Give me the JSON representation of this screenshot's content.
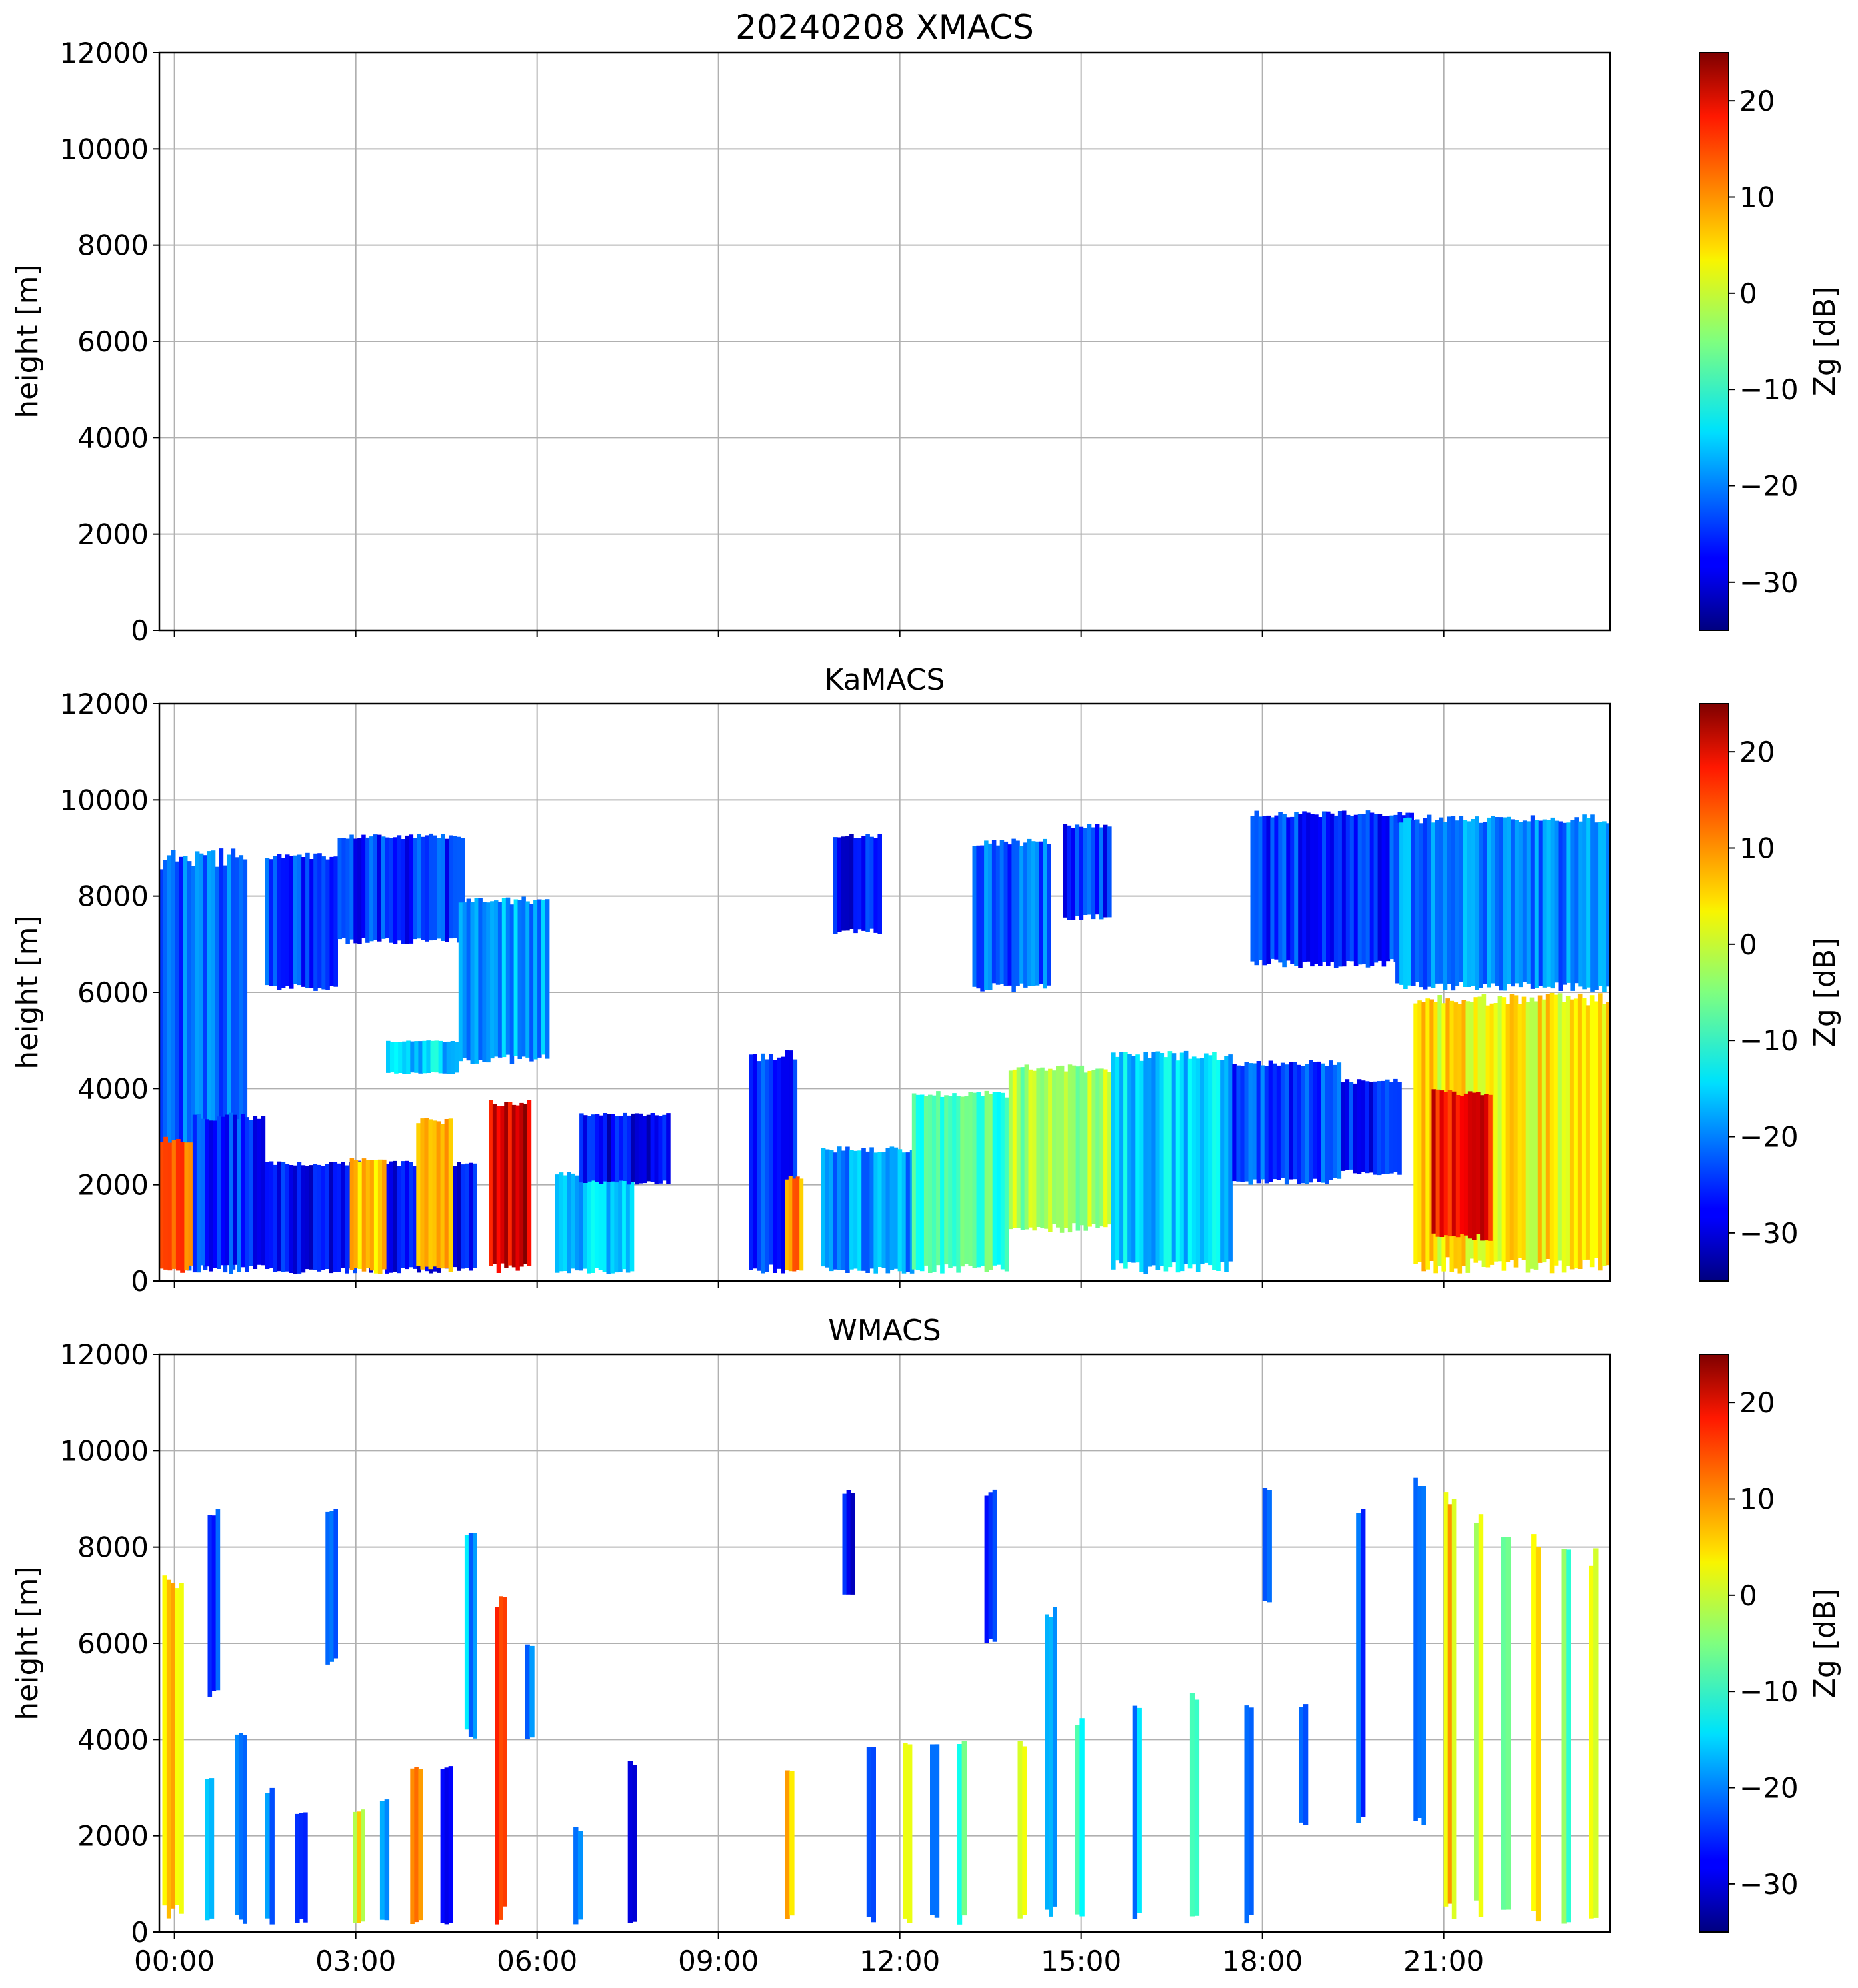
{
  "chart_data": [
    {
      "type": "heatmap",
      "title": "20240208 XMACS",
      "xlabel": "",
      "ylabel": "height [m]",
      "ylim": [
        0,
        12000
      ],
      "yticks": [
        "0",
        "2000",
        "4000",
        "6000",
        "8000",
        "10000",
        "12000"
      ],
      "xlim": [
        -0.25,
        23.75
      ],
      "xticks": [
        0,
        3,
        6,
        9,
        12,
        15,
        18,
        21
      ],
      "grid": true,
      "colorbar": {
        "label": "Zg [dB]",
        "range": [
          -35,
          25
        ],
        "ticks": [
          "20",
          "10",
          "0",
          "−10",
          "−20",
          "−30"
        ]
      },
      "echoes": []
    },
    {
      "type": "heatmap",
      "title": "KaMACS",
      "xlabel": "",
      "ylabel": "height [m]",
      "ylim": [
        0,
        12000
      ],
      "yticks": [
        "0",
        "2000",
        "4000",
        "6000",
        "8000",
        "10000",
        "12000"
      ],
      "xlim": [
        -0.25,
        23.75
      ],
      "xticks": [
        0,
        3,
        6,
        9,
        12,
        15,
        18,
        21
      ],
      "grid": true,
      "colorbar": {
        "label": "Zg [dB]",
        "range": [
          -35,
          25
        ],
        "ticks": [
          "20",
          "10",
          "0",
          "−10",
          "−20",
          "−30"
        ]
      },
      "echoes": [
        {
          "t0": -0.25,
          "t1": 1.2,
          "h0": 150,
          "h1": 9000,
          "zg": -22
        },
        {
          "t0": -0.25,
          "t1": 0.3,
          "h0": 150,
          "h1": 3000,
          "zg": 12
        },
        {
          "t0": 0.3,
          "t1": 1.5,
          "h0": 150,
          "h1": 3500,
          "zg": -25
        },
        {
          "t0": 1.5,
          "t1": 2.7,
          "h0": 6000,
          "h1": 8900,
          "zg": -25
        },
        {
          "t0": 2.7,
          "t1": 4.8,
          "h0": 7000,
          "h1": 9300,
          "zg": -25
        },
        {
          "t0": 1.5,
          "t1": 5.0,
          "h0": 150,
          "h1": 2500,
          "zg": -27
        },
        {
          "t0": 2.9,
          "t1": 3.5,
          "h0": 150,
          "h1": 2600,
          "zg": 5
        },
        {
          "t0": 4.0,
          "t1": 4.6,
          "h0": 150,
          "h1": 3400,
          "zg": 8
        },
        {
          "t0": 4.7,
          "t1": 6.2,
          "h0": 4500,
          "h1": 8000,
          "zg": -18
        },
        {
          "t0": 3.5,
          "t1": 4.7,
          "h0": 4300,
          "h1": 5000,
          "zg": -15
        },
        {
          "t0": 5.2,
          "t1": 5.9,
          "h0": 150,
          "h1": 3800,
          "zg": 20
        },
        {
          "t0": 6.3,
          "t1": 7.6,
          "h0": 150,
          "h1": 2300,
          "zg": -15
        },
        {
          "t0": 6.7,
          "t1": 8.2,
          "h0": 2000,
          "h1": 3500,
          "zg": -28
        },
        {
          "t0": 9.5,
          "t1": 10.3,
          "h0": 150,
          "h1": 4800,
          "zg": -25
        },
        {
          "t0": 10.1,
          "t1": 10.4,
          "h0": 150,
          "h1": 2200,
          "zg": 10
        },
        {
          "t0": 10.7,
          "t1": 12.3,
          "h0": 150,
          "h1": 2800,
          "zg": -18
        },
        {
          "t0": 10.9,
          "t1": 11.7,
          "h0": 7200,
          "h1": 9300,
          "zg": -27
        },
        {
          "t0": 12.2,
          "t1": 13.8,
          "h0": 150,
          "h1": 4000,
          "zg": -8
        },
        {
          "t0": 13.2,
          "t1": 14.5,
          "h0": 6000,
          "h1": 9200,
          "zg": -22
        },
        {
          "t0": 14.7,
          "t1": 15.5,
          "h0": 7500,
          "h1": 9500,
          "zg": -25
        },
        {
          "t0": 13.8,
          "t1": 15.5,
          "h0": 1000,
          "h1": 4500,
          "zg": -3
        },
        {
          "t0": 15.5,
          "t1": 17.5,
          "h0": 150,
          "h1": 4800,
          "zg": -15
        },
        {
          "t0": 17.5,
          "t1": 19.3,
          "h0": 2000,
          "h1": 4600,
          "zg": -24
        },
        {
          "t0": 17.8,
          "t1": 20.5,
          "h0": 6500,
          "h1": 9800,
          "zg": -25
        },
        {
          "t0": 19.3,
          "t1": 20.3,
          "h0": 2200,
          "h1": 4200,
          "zg": -26
        },
        {
          "t0": 20.2,
          "t1": 23.75,
          "h0": 6000,
          "h1": 9700,
          "zg": -20
        },
        {
          "t0": 20.5,
          "t1": 23.75,
          "h0": 150,
          "h1": 6000,
          "zg": 3
        },
        {
          "t0": 20.8,
          "t1": 21.8,
          "h0": 800,
          "h1": 4000,
          "zg": 18
        }
      ]
    },
    {
      "type": "heatmap",
      "title": "WMACS",
      "xlabel": "",
      "ylabel": "height [m]",
      "ylim": [
        0,
        12000
      ],
      "yticks": [
        "0",
        "2000",
        "4000",
        "6000",
        "8000",
        "10000",
        "12000"
      ],
      "xlim": [
        -0.25,
        23.75
      ],
      "xticks": [
        "00:00",
        "03:00",
        "06:00",
        "09:00",
        "12:00",
        "15:00",
        "18:00",
        "21:00"
      ],
      "grid": true,
      "colorbar": {
        "label": "Zg [dB]",
        "range": [
          -35,
          25
        ],
        "ticks": [
          "20",
          "10",
          "0",
          "−10",
          "−20",
          "−30"
        ]
      },
      "echoes": [
        {
          "t0": -0.2,
          "t1": 0.15,
          "h0": 150,
          "h1": 7500,
          "zg": 5
        },
        {
          "t0": 0.5,
          "t1": 0.65,
          "h0": 150,
          "h1": 3200,
          "zg": -12
        },
        {
          "t0": 0.55,
          "t1": 0.75,
          "h0": 4800,
          "h1": 8800,
          "zg": -25
        },
        {
          "t0": 1.0,
          "t1": 1.2,
          "h0": 150,
          "h1": 4200,
          "zg": -18
        },
        {
          "t0": 1.5,
          "t1": 1.65,
          "h0": 150,
          "h1": 3000,
          "zg": -20
        },
        {
          "t0": 2.0,
          "t1": 2.2,
          "h0": 150,
          "h1": 2500,
          "zg": -24
        },
        {
          "t0": 2.5,
          "t1": 2.7,
          "h0": 5500,
          "h1": 8800,
          "zg": -25
        },
        {
          "t0": 2.95,
          "t1": 3.15,
          "h0": 150,
          "h1": 2600,
          "zg": 2
        },
        {
          "t0": 3.4,
          "t1": 3.55,
          "h0": 150,
          "h1": 2800,
          "zg": -22
        },
        {
          "t0": 3.9,
          "t1": 4.1,
          "h0": 150,
          "h1": 3500,
          "zg": 12
        },
        {
          "t0": 4.4,
          "t1": 4.6,
          "h0": 150,
          "h1": 3500,
          "zg": -24
        },
        {
          "t0": 4.8,
          "t1": 5.0,
          "h0": 4000,
          "h1": 8300,
          "zg": -18
        },
        {
          "t0": 5.3,
          "t1": 5.5,
          "h0": 150,
          "h1": 7000,
          "zg": 15
        },
        {
          "t0": 5.8,
          "t1": 5.95,
          "h0": 4000,
          "h1": 6000,
          "zg": -22
        },
        {
          "t0": 6.6,
          "t1": 6.75,
          "h0": 150,
          "h1": 2200,
          "zg": -22
        },
        {
          "t0": 7.5,
          "t1": 7.65,
          "h0": 150,
          "h1": 3600,
          "zg": -26
        },
        {
          "t0": 10.1,
          "t1": 10.25,
          "h0": 150,
          "h1": 3500,
          "zg": 8
        },
        {
          "t0": 11.05,
          "t1": 11.25,
          "h0": 7000,
          "h1": 9200,
          "zg": -27
        },
        {
          "t0": 11.45,
          "t1": 11.6,
          "h0": 150,
          "h1": 4000,
          "zg": -22
        },
        {
          "t0": 12.05,
          "t1": 12.2,
          "h0": 150,
          "h1": 4000,
          "zg": -2
        },
        {
          "t0": 12.5,
          "t1": 12.65,
          "h0": 150,
          "h1": 4000,
          "zg": -18
        },
        {
          "t0": 12.95,
          "t1": 13.1,
          "h0": 150,
          "h1": 4000,
          "zg": -10
        },
        {
          "t0": 13.4,
          "t1": 13.6,
          "h0": 6000,
          "h1": 9200,
          "zg": -26
        },
        {
          "t0": 13.95,
          "t1": 14.1,
          "h0": 150,
          "h1": 4000,
          "zg": 0
        },
        {
          "t0": 14.4,
          "t1": 14.6,
          "h0": 150,
          "h1": 6800,
          "zg": -20
        },
        {
          "t0": 14.9,
          "t1": 15.05,
          "h0": 150,
          "h1": 4500,
          "zg": -12
        },
        {
          "t0": 15.85,
          "t1": 16.0,
          "h0": 150,
          "h1": 4800,
          "zg": -18
        },
        {
          "t0": 16.8,
          "t1": 16.95,
          "h0": 150,
          "h1": 5000,
          "zg": -6
        },
        {
          "t0": 17.7,
          "t1": 17.85,
          "h0": 150,
          "h1": 4800,
          "zg": -20
        },
        {
          "t0": 18.0,
          "t1": 18.15,
          "h0": 6800,
          "h1": 9300,
          "zg": -25
        },
        {
          "t0": 18.6,
          "t1": 18.75,
          "h0": 2200,
          "h1": 4800,
          "zg": -26
        },
        {
          "t0": 19.55,
          "t1": 19.7,
          "h0": 2200,
          "h1": 9000,
          "zg": -22
        },
        {
          "t0": 20.5,
          "t1": 20.7,
          "h0": 2200,
          "h1": 9500,
          "zg": -18
        },
        {
          "t0": 21.0,
          "t1": 21.2,
          "h0": 150,
          "h1": 9200,
          "zg": 5
        },
        {
          "t0": 21.5,
          "t1": 21.65,
          "h0": 150,
          "h1": 8700,
          "zg": 0
        },
        {
          "t0": 21.95,
          "t1": 22.1,
          "h0": 150,
          "h1": 8500,
          "zg": -8
        },
        {
          "t0": 22.45,
          "t1": 22.6,
          "h0": 150,
          "h1": 8300,
          "zg": 3
        },
        {
          "t0": 22.95,
          "t1": 23.1,
          "h0": 150,
          "h1": 8100,
          "zg": -6
        },
        {
          "t0": 23.4,
          "t1": 23.55,
          "h0": 150,
          "h1": 8000,
          "zg": 2
        }
      ]
    }
  ]
}
